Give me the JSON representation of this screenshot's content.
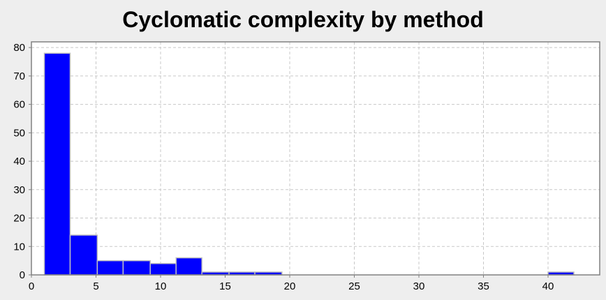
{
  "chart_data": {
    "type": "bar",
    "title": "Cyclomatic complexity by method",
    "xlabel": "",
    "ylabel": "",
    "grid": true,
    "xlim": [
      0,
      44
    ],
    "ylim": [
      0,
      82
    ],
    "x_ticks": [
      0,
      5,
      10,
      15,
      20,
      25,
      30,
      35,
      40
    ],
    "y_ticks": [
      0,
      10,
      20,
      30,
      40,
      50,
      60,
      70,
      80
    ],
    "bins": [
      {
        "x0": 1.0,
        "x1": 3.0,
        "value": 78
      },
      {
        "x0": 3.0,
        "x1": 5.1,
        "value": 14
      },
      {
        "x0": 5.1,
        "x1": 7.1,
        "value": 5
      },
      {
        "x0": 7.1,
        "x1": 9.2,
        "value": 5
      },
      {
        "x0": 9.2,
        "x1": 11.2,
        "value": 4
      },
      {
        "x0": 11.2,
        "x1": 13.2,
        "value": 6
      },
      {
        "x0": 13.2,
        "x1": 15.3,
        "value": 1
      },
      {
        "x0": 15.3,
        "x1": 17.3,
        "value": 1
      },
      {
        "x0": 17.3,
        "x1": 19.4,
        "value": 1
      },
      {
        "x0": 40.0,
        "x1": 42.0,
        "value": 1
      }
    ],
    "colors": {
      "bar": "#0000ff",
      "bar_edge": "#c0c0c0",
      "plot_bg": "#ffffff",
      "grid": "#c8c8c8",
      "axis": "#808080"
    }
  }
}
